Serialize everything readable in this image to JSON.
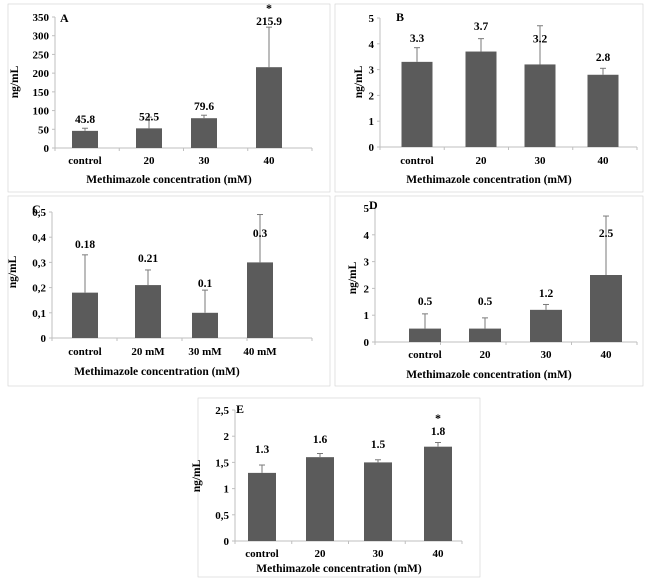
{
  "chart_data": [
    {
      "type": "bar",
      "panel": "A",
      "categories": [
        "control",
        "20",
        "30",
        "40"
      ],
      "values": [
        45.8,
        52.5,
        79.6,
        215.9
      ],
      "errors": [
        7,
        30,
        8,
        107
      ],
      "labels": [
        "45.8",
        "52.5",
        "79.6",
        "215.9"
      ],
      "significance": [
        "",
        "",
        "",
        "*"
      ],
      "ylabel": "ng/mL",
      "xlabel": "Methimazole  concentration  (mM)",
      "ylim": [
        0,
        350
      ],
      "yticks": [
        "0",
        "50",
        "100",
        "150",
        "200",
        "250",
        "300",
        "350"
      ]
    },
    {
      "type": "bar",
      "panel": "B",
      "categories": [
        "control",
        "20",
        "30",
        "40"
      ],
      "values": [
        3.3,
        3.7,
        3.2,
        2.8
      ],
      "errors": [
        0.55,
        0.5,
        1.5,
        0.25
      ],
      "labels": [
        "3.3",
        "3.7",
        "3.2",
        "2.8"
      ],
      "significance": [
        "",
        "",
        "",
        ""
      ],
      "ylabel": "ng/mL",
      "xlabel": "Methimazole  concentration  (mM)",
      "ylim": [
        0,
        5
      ],
      "yticks": [
        "0",
        "1",
        "2",
        "3",
        "4",
        "5"
      ]
    },
    {
      "type": "bar",
      "panel": "C",
      "categories": [
        "control",
        "20 mM",
        "30 mM",
        "40 mM"
      ],
      "values": [
        0.18,
        0.21,
        0.1,
        0.3
      ],
      "errors": [
        0.15,
        0.06,
        0.09,
        0.19
      ],
      "labels": [
        "0.18",
        "0.21",
        "0.1",
        "0.3"
      ],
      "significance": [
        "",
        "",
        "",
        ""
      ],
      "ylabel": "ng/mL",
      "xlabel": "Methimazole  concentration  (mM)",
      "ylim": [
        0,
        0.5
      ],
      "yticks": [
        "0",
        "0,1",
        "0,2",
        "0,3",
        "0,4",
        "0,5"
      ]
    },
    {
      "type": "bar",
      "panel": "D",
      "categories": [
        "control",
        "20",
        "30",
        "40"
      ],
      "values": [
        0.5,
        0.5,
        1.2,
        2.5
      ],
      "errors": [
        0.55,
        0.4,
        0.2,
        2.2
      ],
      "labels": [
        "0.5",
        "0.5",
        "1.2",
        "2.5"
      ],
      "significance": [
        "",
        "",
        "",
        ""
      ],
      "ylabel": "ng/mL",
      "xlabel": "Methimazole  concentration  (mM)",
      "ylim": [
        0,
        5
      ],
      "yticks": [
        "0",
        "1",
        "2",
        "3",
        "4",
        "5"
      ]
    },
    {
      "type": "bar",
      "panel": "E",
      "categories": [
        "control",
        "20",
        "30",
        "40"
      ],
      "values": [
        1.3,
        1.6,
        1.5,
        1.8
      ],
      "errors": [
        0.15,
        0.07,
        0.05,
        0.08
      ],
      "labels": [
        "1.3",
        "1.6",
        "1.5",
        "1.8"
      ],
      "significance": [
        "",
        "",
        "",
        "*"
      ],
      "ylabel": "ng/mL",
      "xlabel": "Methimazole  concentration  (mM)",
      "ylim": [
        0,
        2.5
      ],
      "yticks": [
        "0",
        "0,5",
        "1",
        "1,5",
        "2",
        "2,5"
      ]
    }
  ],
  "colors": {
    "bar": "#5b5b5b",
    "axis": "#bfbfbf",
    "errbar": "#7a7a7a",
    "frame": "#d0d0d0"
  }
}
